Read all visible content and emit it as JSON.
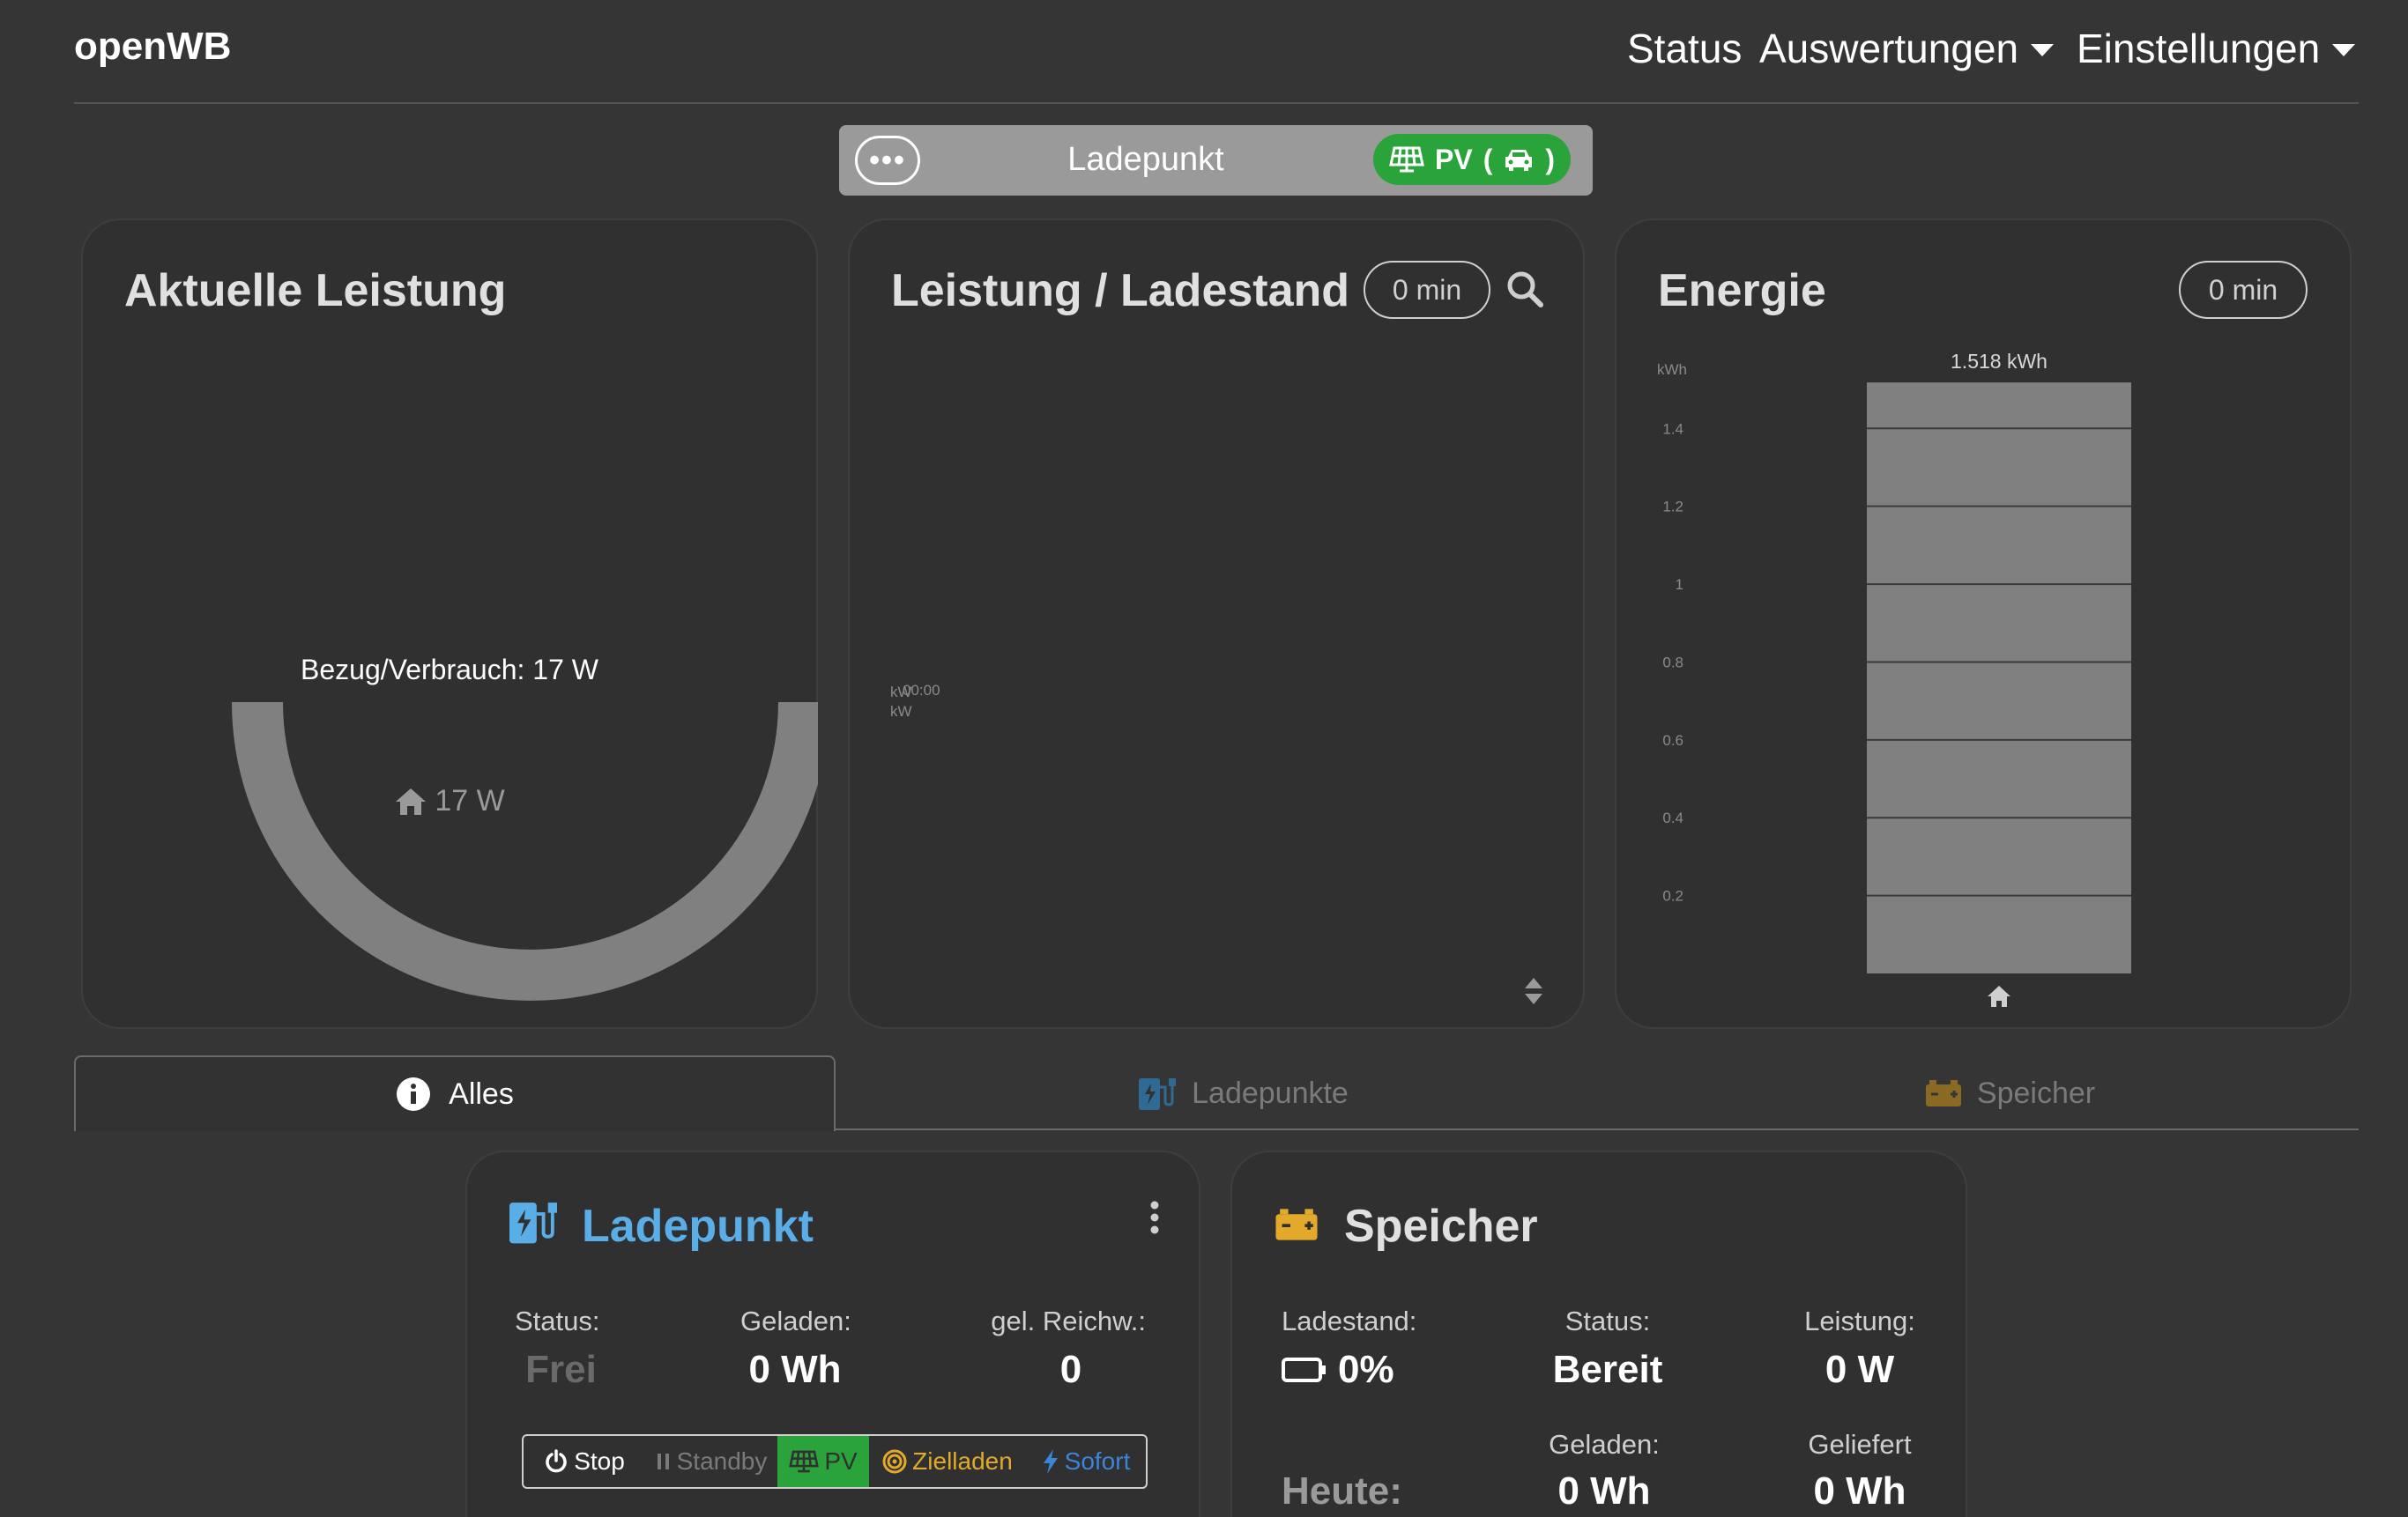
{
  "nav": {
    "brand": "openWB",
    "items": [
      {
        "label": "Status"
      },
      {
        "label": "Auswertungen"
      },
      {
        "label": "Einstellungen"
      }
    ]
  },
  "chargepoint_bar": {
    "title": "Ladepunkt",
    "mode_pill": "PV",
    "mode_paren_open": "(",
    "mode_paren_close": ")"
  },
  "power_card": {
    "title": "Aktuelle Leistung",
    "gauge_label": "Bezug/Verbrauch: 17 W",
    "house_value": "17 W",
    "arc_color": "#808080"
  },
  "graph_card": {
    "title": "Leistung / Ladestand",
    "range": "0 min",
    "axis_kw_1": "kW",
    "axis_time": "00:00",
    "axis_kw_2": "kW"
  },
  "energy_card": {
    "title": "Energie",
    "range": "0 min",
    "unit": "kWh",
    "bar_label": "1.518 kWh"
  },
  "chart_data": {
    "type": "bar",
    "categories": [
      "house"
    ],
    "values": [
      1.518
    ],
    "ylabel": "kWh",
    "yticks": [
      "0.2",
      "0.4",
      "0.6",
      "0.8",
      "1",
      "1.2",
      "1.4"
    ],
    "ylim": [
      0,
      1.55
    ],
    "grid": true,
    "bar_color": "#808080"
  },
  "tabs": {
    "all": "Alles",
    "chargepoints": "Ladepunkte",
    "storage": "Speicher"
  },
  "chargepoint_card": {
    "title": "Ladepunkt",
    "status_label": "Status:",
    "status_value": "Frei",
    "charged_label": "Geladen:",
    "charged_value": "0 Wh",
    "range_label": "gel. Reichw.:",
    "range_value": "0",
    "modes": {
      "stop": "Stop",
      "standby": "Standby",
      "pv": "PV",
      "target": "Zielladen",
      "instant": "Sofort"
    }
  },
  "storage_card": {
    "title": "Speicher",
    "soc_label": "Ladestand:",
    "soc_value": "0%",
    "status_label": "Status:",
    "status_value": "Bereit",
    "power_label": "Leistung:",
    "power_value": "0 W",
    "today_label": "Heute:",
    "charged_label": "Geladen:",
    "charged_value": "0 Wh",
    "delivered_label": "Geliefert",
    "delivered_value": "0 Wh"
  },
  "colors": {
    "accent_blue": "#5aaee8",
    "storage_yellow": "#e3a92b",
    "pv_green": "#2aa33a"
  }
}
